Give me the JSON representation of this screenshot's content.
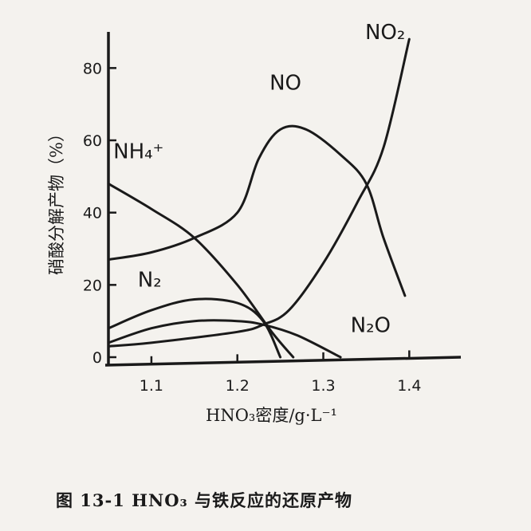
{
  "chart_data": {
    "type": "line",
    "title": "",
    "xlabel": "HNO₃密度/g·L⁻¹",
    "ylabel": "硝酸分解产物（%）",
    "xlim": [
      1.05,
      1.46
    ],
    "ylim": [
      0,
      90
    ],
    "x_ticks": [
      "1.1",
      "1.2",
      "1.3",
      "1.4"
    ],
    "y_ticks": [
      "0",
      "20",
      "40",
      "60",
      "80"
    ],
    "series": [
      {
        "name": "NO",
        "x": [
          1.05,
          1.1,
          1.15,
          1.2,
          1.225,
          1.25,
          1.28,
          1.32,
          1.35,
          1.37,
          1.395
        ],
        "y": [
          27,
          29,
          33,
          40,
          55,
          63,
          63,
          56,
          48,
          33,
          17
        ]
      },
      {
        "name": "NO₂",
        "x": [
          1.05,
          1.1,
          1.2,
          1.23,
          1.26,
          1.3,
          1.34,
          1.37,
          1.4
        ],
        "y": [
          3,
          4,
          7,
          9,
          13,
          26,
          43,
          58,
          88
        ]
      },
      {
        "name": "NH₄⁺",
        "x": [
          1.05,
          1.1,
          1.15,
          1.2,
          1.24,
          1.265
        ],
        "y": [
          48,
          41,
          33,
          20,
          7,
          0
        ]
      },
      {
        "name": "N₂",
        "x": [
          1.05,
          1.1,
          1.15,
          1.2,
          1.23,
          1.25
        ],
        "y": [
          8,
          13,
          16,
          15,
          10,
          0
        ]
      },
      {
        "name": "N₂O",
        "x": [
          1.05,
          1.1,
          1.15,
          1.2,
          1.23,
          1.27,
          1.32
        ],
        "y": [
          4,
          8,
          10,
          10,
          9,
          6,
          0
        ]
      }
    ],
    "grid": false,
    "legend": "none"
  },
  "caption": "图  13-1   HNO₃ 与铁反应的还原产物"
}
